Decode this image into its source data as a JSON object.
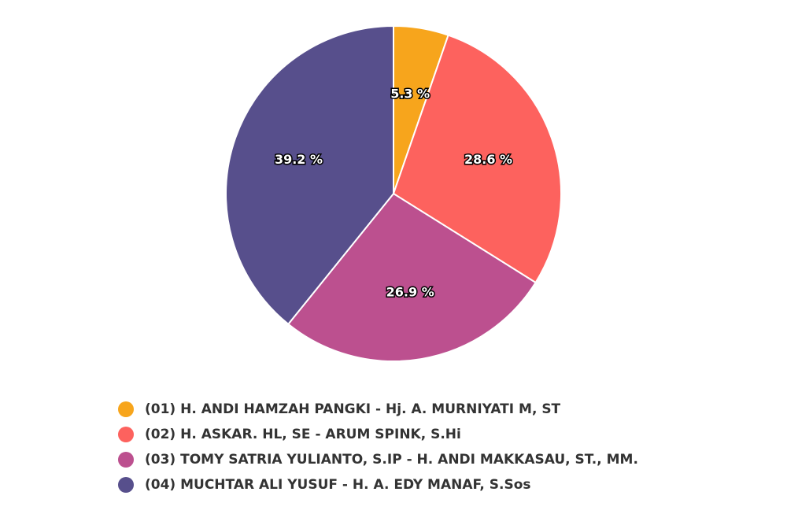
{
  "chart_data": {
    "type": "pie",
    "title": "",
    "categories": [
      "(01) H. ANDI HAMZAH PANGKI - Hj. A. MURNIYATI M, ST",
      "(02) H. ASKAR. HL, SE - ARUM SPINK, S.Hi",
      "(03) TOMY SATRIA YULIANTO, S.IP - H. ANDI MAKKASAU, ST., MM.",
      "(04) MUCHTAR ALI YUSUF - H. A. EDY MANAF, S.Sos"
    ],
    "values": [
      5.3,
      28.6,
      26.9,
      39.2
    ],
    "value_labels": [
      "5.3 %",
      "28.6 %",
      "26.9 %",
      "39.2 %"
    ],
    "colors": [
      "#f7a51c",
      "#fd625e",
      "#bc508f",
      "#574f8c"
    ],
    "legend_placement": "bottom"
  }
}
